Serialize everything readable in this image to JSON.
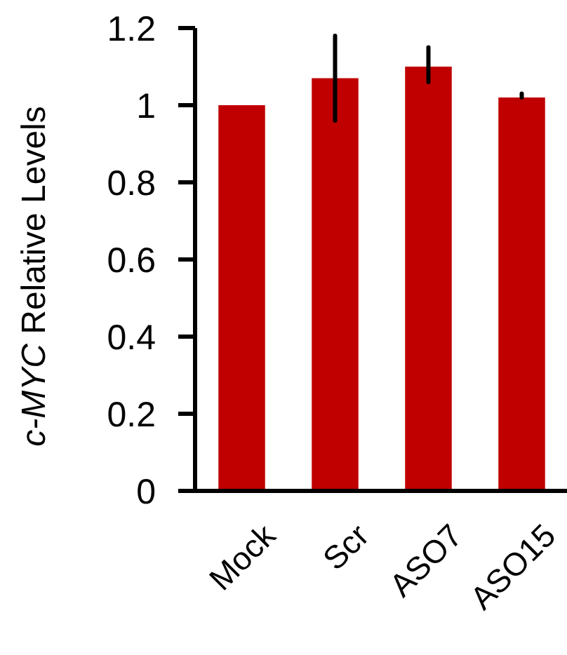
{
  "chart_data": {
    "type": "bar",
    "ylabel": "c-MYC Relative Levels",
    "categories": [
      "Mock",
      "Scr",
      "ASO7",
      "ASO15"
    ],
    "values": [
      1.0,
      1.07,
      1.1,
      1.02
    ],
    "errors": [
      null,
      [
        0.96,
        1.18
      ],
      [
        1.06,
        1.15
      ],
      [
        1.02,
        1.03
      ]
    ],
    "color": "#c00000",
    "ylim": [
      0,
      1.2
    ],
    "yticks": [
      0,
      0.2,
      0.4,
      0.6,
      0.8,
      1,
      1.2
    ],
    "grid": false
  }
}
